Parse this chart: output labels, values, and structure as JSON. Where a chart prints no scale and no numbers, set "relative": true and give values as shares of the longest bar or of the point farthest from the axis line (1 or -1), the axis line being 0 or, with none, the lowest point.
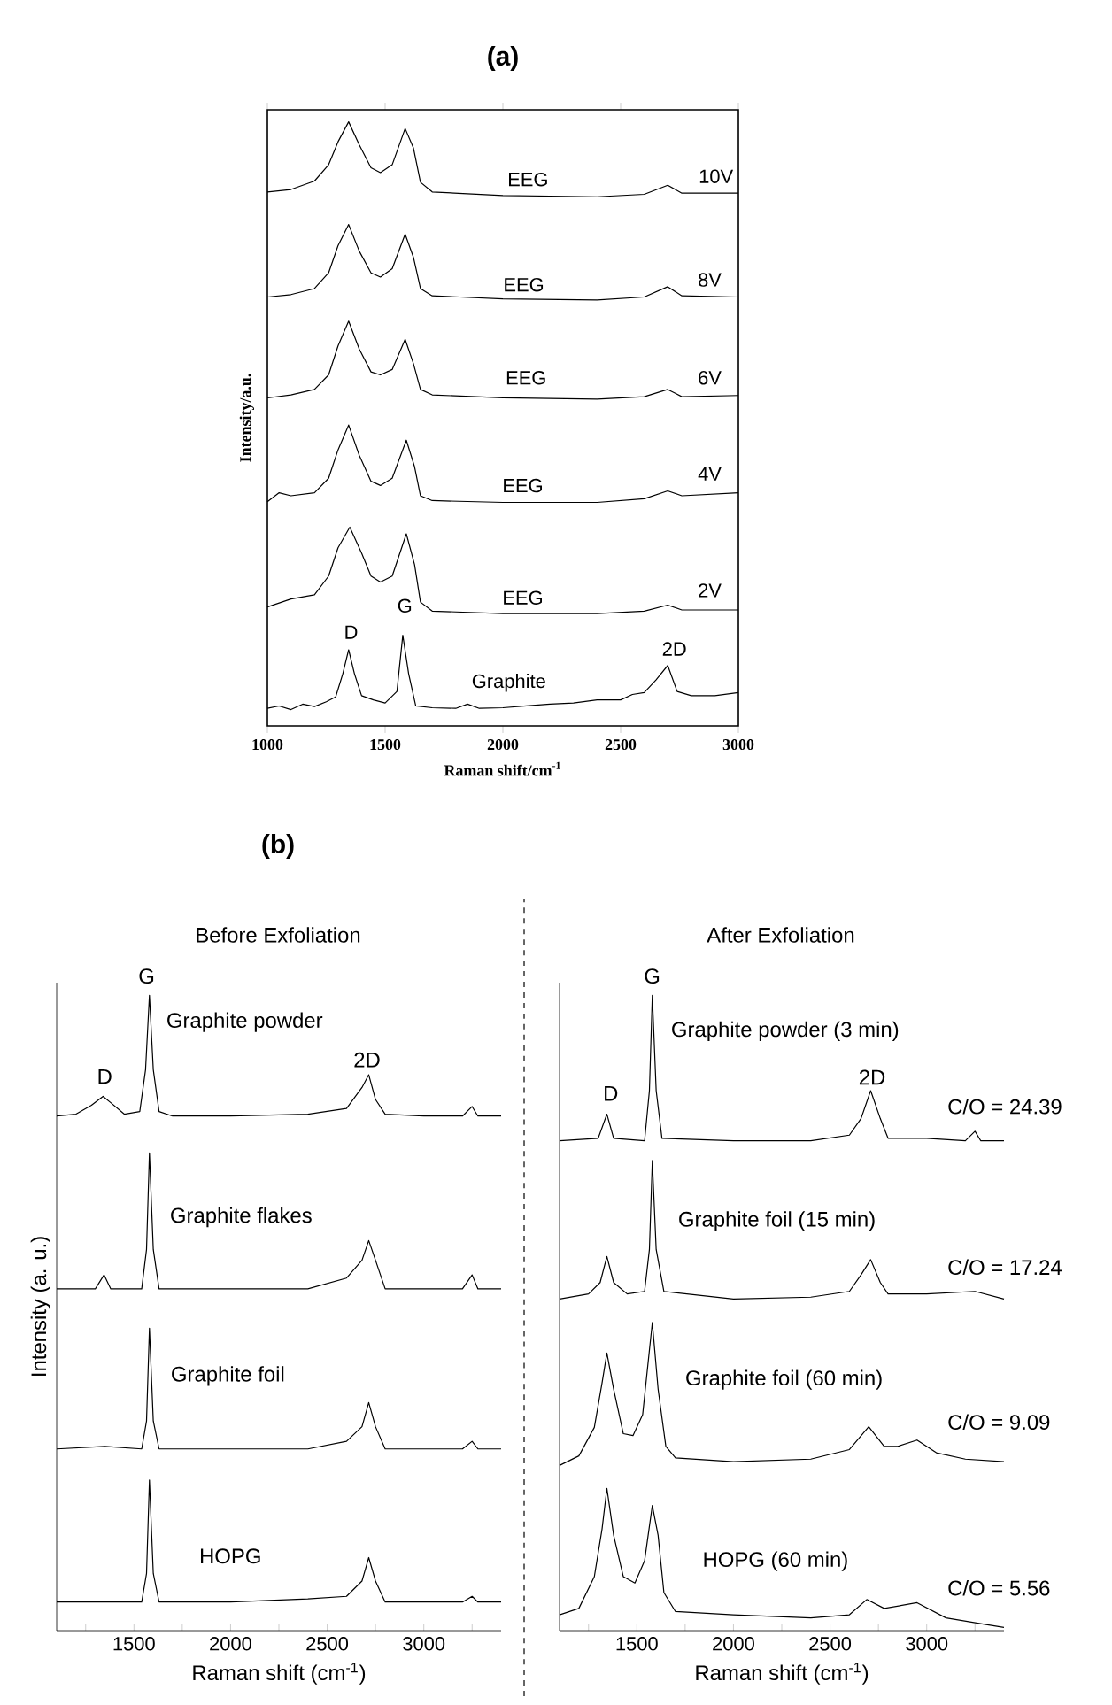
{
  "chart_data": [
    {
      "type": "line",
      "title": "(a)",
      "xlabel": "Raman shift/cm$^{-1}$",
      "ylabel": "Intensity/a.u.",
      "relative": true,
      "xlim": [
        1000,
        3000
      ],
      "xticks": [
        1000,
        1500,
        2000,
        2500,
        3000
      ],
      "series": [
        {
          "color": "#000000",
          "x": [
            1000,
            1100,
            1200,
            1260,
            1300,
            1345,
            1390,
            1440,
            1480,
            1530,
            1585,
            1620,
            1650,
            1700,
            2000,
            2400,
            2600,
            2700,
            2760,
            3000
          ],
          "values": [
            0.884,
            0.888,
            0.902,
            0.929,
            0.967,
            1.0,
            0.962,
            0.924,
            0.916,
            0.929,
            0.989,
            0.957,
            0.9,
            0.884,
            0.878,
            0.876,
            0.88,
            0.895,
            0.882,
            0.882
          ]
        },
        {
          "color": "#000000",
          "x": [
            1000,
            1100,
            1200,
            1260,
            1300,
            1345,
            1390,
            1440,
            1480,
            1530,
            1585,
            1620,
            1650,
            1700,
            2000,
            2400,
            2600,
            2700,
            2760,
            3000
          ],
          "values": [
            0.71,
            0.714,
            0.724,
            0.75,
            0.795,
            0.83,
            0.786,
            0.75,
            0.743,
            0.757,
            0.814,
            0.776,
            0.724,
            0.712,
            0.707,
            0.705,
            0.71,
            0.727,
            0.712,
            0.71
          ]
        },
        {
          "color": "#000000",
          "x": [
            1000,
            1100,
            1200,
            1260,
            1300,
            1345,
            1390,
            1440,
            1480,
            1530,
            1585,
            1620,
            1650,
            1700,
            2000,
            2400,
            2600,
            2700,
            2760,
            3000
          ],
          "values": [
            0.543,
            0.548,
            0.557,
            0.581,
            0.629,
            0.67,
            0.624,
            0.586,
            0.581,
            0.59,
            0.64,
            0.6,
            0.557,
            0.548,
            0.543,
            0.541,
            0.545,
            0.557,
            0.545,
            0.547
          ]
        },
        {
          "color": "#000000",
          "x": [
            1000,
            1050,
            1100,
            1200,
            1260,
            1300,
            1345,
            1390,
            1440,
            1480,
            1530,
            1590,
            1625,
            1650,
            1700,
            2000,
            2400,
            2600,
            2700,
            2760,
            3000
          ],
          "values": [
            0.371,
            0.386,
            0.381,
            0.386,
            0.41,
            0.457,
            0.498,
            0.448,
            0.405,
            0.398,
            0.41,
            0.473,
            0.429,
            0.381,
            0.373,
            0.37,
            0.37,
            0.376,
            0.389,
            0.381,
            0.386
          ]
        },
        {
          "color": "#000000",
          "x": [
            1000,
            1100,
            1200,
            1260,
            1300,
            1350,
            1400,
            1440,
            1480,
            1530,
            1590,
            1625,
            1650,
            1700,
            2000,
            2400,
            2600,
            2700,
            2760,
            3000
          ],
          "values": [
            0.197,
            0.21,
            0.217,
            0.248,
            0.295,
            0.329,
            0.286,
            0.248,
            0.238,
            0.248,
            0.318,
            0.267,
            0.205,
            0.19,
            0.186,
            0.186,
            0.19,
            0.2,
            0.192,
            0.192
          ]
        },
        {
          "color": "#000000",
          "x": [
            1000,
            1050,
            1100,
            1150,
            1200,
            1250,
            1290,
            1320,
            1345,
            1370,
            1400,
            1450,
            1500,
            1550,
            1575,
            1600,
            1630,
            1700,
            1800,
            1850,
            1900,
            2000,
            2100,
            2200,
            2300,
            2400,
            2500,
            2550,
            2600,
            2650,
            2700,
            2740,
            2800,
            2900,
            3000
          ],
          "values": [
            0.029,
            0.033,
            0.027,
            0.036,
            0.032,
            0.04,
            0.048,
            0.086,
            0.126,
            0.086,
            0.05,
            0.043,
            0.038,
            0.057,
            0.15,
            0.086,
            0.033,
            0.03,
            0.029,
            0.036,
            0.029,
            0.03,
            0.033,
            0.036,
            0.038,
            0.043,
            0.043,
            0.052,
            0.055,
            0.076,
            0.1,
            0.057,
            0.05,
            0.05,
            0.055
          ]
        }
      ],
      "annotations": [
        "EEG",
        "10V",
        "EEG",
        "8V",
        "EEG",
        "6V",
        "EEG",
        "4V",
        "EEG",
        "2V",
        "Graphite",
        "D",
        "G",
        "2D"
      ]
    },
    {
      "type": "line",
      "title": "(b)",
      "subtitle": "Before Exfoliation",
      "xlabel": "Raman shift (cm$^{-1}$)",
      "ylabel": "Intensity (a. u.)",
      "relative": true,
      "xlim": [
        1100,
        3400
      ],
      "xticks": [
        {
          "value": 1250,
          "label": null
        },
        1500,
        {
          "value": 1750,
          "label": null
        },
        2000,
        {
          "value": 2250,
          "label": null
        },
        2500,
        {
          "value": 2750,
          "label": null
        },
        3000,
        {
          "value": 3250,
          "label": null
        }
      ],
      "series": [
        {
          "color": "#000000",
          "x": [
            1100,
            1200,
            1280,
            1340,
            1380,
            1450,
            1530,
            1560,
            1580,
            1600,
            1630,
            1700,
            2000,
            2400,
            2600,
            2680,
            2715,
            2750,
            2800,
            3000,
            3200,
            3250,
            3280,
            3400
          ],
          "values": [
            0.81,
            0.813,
            0.827,
            0.841,
            0.831,
            0.813,
            0.817,
            0.883,
            1.0,
            0.883,
            0.817,
            0.81,
            0.81,
            0.813,
            0.822,
            0.855,
            0.875,
            0.836,
            0.813,
            0.81,
            0.81,
            0.825,
            0.81,
            0.81
          ]
        },
        {
          "color": "#000000",
          "x": [
            1100,
            1300,
            1345,
            1380,
            1540,
            1565,
            1580,
            1600,
            1630,
            2000,
            2400,
            2600,
            2680,
            2715,
            2750,
            2800,
            3200,
            3250,
            3280,
            3400
          ],
          "values": [
            0.538,
            0.538,
            0.56,
            0.538,
            0.538,
            0.6,
            0.752,
            0.6,
            0.538,
            0.538,
            0.538,
            0.555,
            0.583,
            0.614,
            0.583,
            0.538,
            0.538,
            0.56,
            0.538,
            0.538
          ]
        },
        {
          "color": "#000000",
          "x": [
            1100,
            1350,
            1540,
            1565,
            1580,
            1600,
            1630,
            2000,
            2400,
            2600,
            2680,
            2715,
            2750,
            2800,
            3200,
            3250,
            3280,
            3400
          ],
          "values": [
            0.286,
            0.29,
            0.286,
            0.33,
            0.476,
            0.33,
            0.286,
            0.286,
            0.286,
            0.298,
            0.321,
            0.359,
            0.321,
            0.286,
            0.286,
            0.298,
            0.286,
            0.286
          ]
        },
        {
          "color": "#000000",
          "x": [
            1100,
            1540,
            1565,
            1580,
            1600,
            1630,
            2000,
            2400,
            2600,
            2680,
            2715,
            2750,
            2800,
            3200,
            3250,
            3280,
            3400
          ],
          "values": [
            0.045,
            0.045,
            0.09,
            0.237,
            0.09,
            0.045,
            0.045,
            0.05,
            0.054,
            0.078,
            0.115,
            0.078,
            0.045,
            0.045,
            0.054,
            0.045,
            0.045
          ]
        }
      ],
      "annotations": [
        "G",
        "D",
        "2D",
        "Graphite powder",
        "Graphite flakes",
        "Graphite foil",
        "HOPG"
      ]
    },
    {
      "type": "line",
      "subtitle": "After Exfoliation",
      "xlabel": "Raman shift (cm$^{-1}$)",
      "relative": true,
      "xlim": [
        1100,
        3400
      ],
      "xticks": [
        {
          "value": 1250,
          "label": null
        },
        1500,
        {
          "value": 1750,
          "label": null
        },
        2000,
        {
          "value": 2250,
          "label": null
        },
        2500,
        {
          "value": 2750,
          "label": null
        },
        3000,
        {
          "value": 3250,
          "label": null
        }
      ],
      "series": [
        {
          "color": "#000000",
          "x": [
            1100,
            1300,
            1345,
            1380,
            1540,
            1565,
            1580,
            1600,
            1630,
            2000,
            2400,
            2600,
            2660,
            2710,
            2760,
            2800,
            3000,
            3200,
            3250,
            3280,
            3400
          ],
          "values": [
            0.771,
            0.775,
            0.813,
            0.775,
            0.771,
            0.85,
            1.0,
            0.85,
            0.775,
            0.771,
            0.771,
            0.78,
            0.806,
            0.85,
            0.806,
            0.775,
            0.775,
            0.771,
            0.786,
            0.771,
            0.771
          ]
        },
        {
          "color": "#000000",
          "x": [
            1100,
            1250,
            1310,
            1345,
            1380,
            1450,
            1540,
            1565,
            1580,
            1600,
            1640,
            2000,
            2400,
            2600,
            2660,
            2710,
            2760,
            2800,
            3000,
            3250,
            3400
          ],
          "values": [
            0.522,
            0.53,
            0.548,
            0.589,
            0.548,
            0.53,
            0.534,
            0.6,
            0.74,
            0.6,
            0.534,
            0.522,
            0.525,
            0.534,
            0.56,
            0.584,
            0.548,
            0.53,
            0.53,
            0.534,
            0.522
          ]
        },
        {
          "color": "#000000",
          "x": [
            1100,
            1200,
            1280,
            1320,
            1345,
            1380,
            1430,
            1480,
            1530,
            1580,
            1610,
            1650,
            1700,
            2000,
            2400,
            2600,
            2700,
            2780,
            2850,
            2950,
            3050,
            3200,
            3400
          ],
          "values": [
            0.26,
            0.275,
            0.32,
            0.39,
            0.437,
            0.38,
            0.31,
            0.307,
            0.34,
            0.485,
            0.38,
            0.29,
            0.272,
            0.266,
            0.27,
            0.285,
            0.321,
            0.29,
            0.29,
            0.3,
            0.28,
            0.27,
            0.266
          ]
        },
        {
          "color": "#000000",
          "x": [
            1100,
            1200,
            1280,
            1320,
            1345,
            1380,
            1430,
            1490,
            1540,
            1580,
            1610,
            1640,
            1700,
            2000,
            2400,
            2600,
            2690,
            2780,
            2950,
            3100,
            3300,
            3400
          ],
          "values": [
            0.025,
            0.035,
            0.085,
            0.16,
            0.224,
            0.15,
            0.085,
            0.075,
            0.11,
            0.197,
            0.15,
            0.06,
            0.03,
            0.025,
            0.02,
            0.025,
            0.049,
            0.035,
            0.044,
            0.02,
            0.01,
            0.005
          ]
        }
      ],
      "annotations": [
        "G",
        "D",
        "2D",
        "Graphite powder (3 min)",
        "C/O = 24.39",
        "Graphite foil (15 min)",
        "C/O = 17.24",
        "Graphite foil (60 min)",
        "C/O = 9.09",
        "HOPG (60 min)",
        "C/O = 5.56"
      ]
    }
  ]
}
